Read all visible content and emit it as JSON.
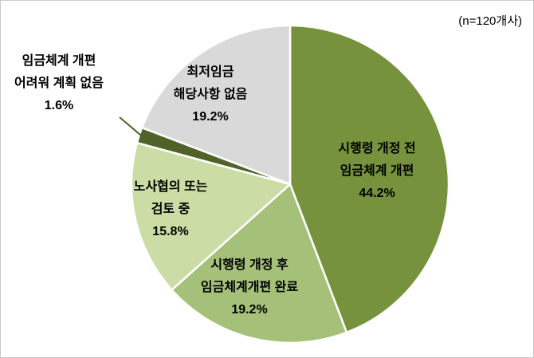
{
  "annotation": "(n=120개사)",
  "chart_data": {
    "type": "pie",
    "title": "",
    "unit": "%",
    "start_angle_deg": 0,
    "direction": "clockwise",
    "legend_position": "none",
    "slices": [
      {
        "label": "시행령 개정 전 임금체계 개편",
        "lines": [
          "시행령 개정 전",
          "임금체계 개편"
        ],
        "pct_label": "44.2%",
        "value": 44.2,
        "color": "#76923C",
        "callout": false
      },
      {
        "label": "시행령 개정 후 임금체계개편 완료",
        "lines": [
          "시행령 개정 후",
          "임금체계개편 완료"
        ],
        "pct_label": "19.2%",
        "value": 19.2,
        "color": "#A4C079",
        "callout": false
      },
      {
        "label": "노사협의 또는 검토 중",
        "lines": [
          "노사협의 또는",
          "검토 중"
        ],
        "pct_label": "15.8%",
        "value": 15.8,
        "color": "#CBDCA4",
        "callout": false
      },
      {
        "label": "임금체계 개편 어려워 계획 없음",
        "lines": [
          "임금체계 개편",
          "어려워 계획 없음"
        ],
        "pct_label": "1.6%",
        "value": 1.6,
        "color": "#4F6228",
        "callout": true
      },
      {
        "label": "최저임금 해당사항 없음",
        "lines": [
          "최저임금",
          "해당사항 없음"
        ],
        "pct_label": "19.2%",
        "value": 19.2,
        "color": "#D9D9D9",
        "callout": false
      }
    ],
    "colors": {
      "slice_stroke": "#FFFFFF",
      "leader_line": "#4F6228",
      "label_text": "#000000",
      "background": "#FFFFFF",
      "border": "#C9C9C9"
    }
  }
}
